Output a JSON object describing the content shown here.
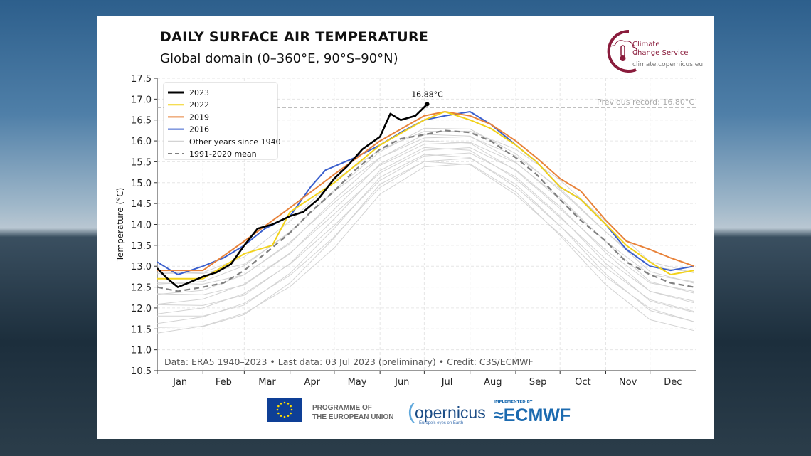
{
  "header": {
    "title": "DAILY SURFACE AIR TEMPERATURE",
    "subtitle": "Global domain (0–360°E, 90°S–90°N)"
  },
  "branding": {
    "c3s_line1": "Climate",
    "c3s_line2": "Change Service",
    "c3s_url": "climate.copernicus.eu",
    "eu_line1": "PROGRAMME OF",
    "eu_line2": "THE EUROPEAN UNION",
    "copernicus": "opernicus",
    "copernicus_tag": "Europe's eyes on Earth",
    "ecmwf_by": "IMPLEMENTED BY",
    "ecmwf": "ECMWF"
  },
  "chart_data": {
    "type": "line",
    "ylabel": "Temperature (°C)",
    "ylim": [
      10.5,
      17.5
    ],
    "yticks": [
      "10.5",
      "11.0",
      "11.5",
      "12.0",
      "12.5",
      "13.0",
      "13.5",
      "14.0",
      "14.5",
      "15.0",
      "15.5",
      "16.0",
      "16.5",
      "17.0",
      "17.5"
    ],
    "xticks": [
      "Jan",
      "Feb",
      "Mar",
      "Apr",
      "May",
      "Jun",
      "Jul",
      "Aug",
      "Sep",
      "Oct",
      "Nov",
      "Dec"
    ],
    "grid": true,
    "legend_position": "top-left",
    "credit": "Data: ERA5 1940–2023 • Last data: 03 Jul 2023 (preliminary) • Credit: C3S/ECMWF",
    "record": {
      "value": 16.8,
      "label": "Previous record: 16.80°C"
    },
    "peak": {
      "date": "07-03",
      "value": 16.88,
      "label": "16.88°C"
    },
    "series": [
      {
        "name": "2023",
        "color": "#000000",
        "x": [
          "01-01",
          "01-08",
          "01-15",
          "01-22",
          "02-01",
          "02-10",
          "02-20",
          "03-01",
          "03-10",
          "03-20",
          "04-01",
          "04-10",
          "04-20",
          "05-01",
          "05-10",
          "05-20",
          "06-01",
          "06-08",
          "06-15",
          "06-25",
          "07-03"
        ],
        "values": [
          12.95,
          12.7,
          12.5,
          12.6,
          12.75,
          12.85,
          13.05,
          13.5,
          13.9,
          14.0,
          14.2,
          14.3,
          14.6,
          15.1,
          15.4,
          15.8,
          16.1,
          16.65,
          16.5,
          16.6,
          16.88
        ]
      },
      {
        "name": "2022",
        "color": "#f2d21a",
        "x": [
          "01-01",
          "02-01",
          "03-01",
          "03-20",
          "04-01",
          "05-01",
          "06-01",
          "07-01",
          "07-15",
          "08-01",
          "08-15",
          "09-01",
          "09-15",
          "10-01",
          "10-15",
          "11-01",
          "11-15",
          "12-01",
          "12-15",
          "12-31"
        ],
        "values": [
          12.7,
          12.7,
          13.3,
          13.5,
          14.3,
          15.0,
          15.9,
          16.5,
          16.7,
          16.5,
          16.3,
          15.9,
          15.5,
          14.9,
          14.6,
          14.0,
          13.5,
          13.1,
          12.8,
          12.9
        ]
      },
      {
        "name": "2019",
        "color": "#e8823a",
        "x": [
          "01-01",
          "02-01",
          "03-01",
          "04-01",
          "05-01",
          "06-01",
          "07-01",
          "07-15",
          "08-01",
          "08-15",
          "09-01",
          "09-15",
          "10-01",
          "10-15",
          "11-01",
          "11-15",
          "12-01",
          "12-15",
          "12-31"
        ],
        "values": [
          12.9,
          12.9,
          13.6,
          14.4,
          15.2,
          16.0,
          16.6,
          16.7,
          16.6,
          16.4,
          16.0,
          15.6,
          15.1,
          14.8,
          14.1,
          13.6,
          13.4,
          13.2,
          13.0
        ]
      },
      {
        "name": "2016",
        "color": "#3a5fcd",
        "x": [
          "01-01",
          "01-15",
          "02-01",
          "02-15",
          "03-01",
          "03-15",
          "04-01",
          "04-15",
          "04-25",
          "05-15",
          "06-01",
          "06-15",
          "07-01",
          "07-15",
          "08-01",
          "08-15",
          "09-01",
          "09-15",
          "10-01",
          "10-15",
          "11-01",
          "11-15",
          "12-01",
          "12-15",
          "12-31"
        ],
        "values": [
          13.1,
          12.8,
          13.0,
          13.2,
          13.5,
          13.9,
          14.2,
          14.9,
          15.3,
          15.6,
          15.9,
          16.2,
          16.5,
          16.6,
          16.7,
          16.4,
          15.9,
          15.5,
          14.9,
          14.6,
          14.0,
          13.4,
          13.0,
          12.9,
          13.0
        ]
      },
      {
        "name": "Other years since 1940",
        "color": "#d3d3d3",
        "x": [
          "01-01",
          "02-01",
          "03-01",
          "04-01",
          "05-01",
          "06-01",
          "07-01",
          "08-01",
          "09-01",
          "10-01",
          "11-01",
          "12-01",
          "12-31"
        ],
        "upper": [
          12.9,
          12.9,
          13.2,
          14.0,
          15.0,
          15.8,
          16.3,
          16.3,
          15.8,
          15.0,
          14.0,
          13.1,
          12.9
        ],
        "lower": [
          11.4,
          11.5,
          11.8,
          12.5,
          13.5,
          14.8,
          15.4,
          15.4,
          14.7,
          13.7,
          12.6,
          11.8,
          11.5
        ]
      },
      {
        "name": "1991-2020 mean",
        "color": "#808080",
        "dashed": true,
        "x": [
          "01-01",
          "01-15",
          "02-01",
          "02-15",
          "03-01",
          "03-15",
          "04-01",
          "04-15",
          "05-01",
          "05-15",
          "06-01",
          "06-15",
          "07-01",
          "07-15",
          "08-01",
          "08-15",
          "09-01",
          "09-15",
          "10-01",
          "10-15",
          "11-01",
          "11-15",
          "12-01",
          "12-15",
          "12-31"
        ],
        "values": [
          12.5,
          12.4,
          12.5,
          12.6,
          12.9,
          13.3,
          13.8,
          14.3,
          14.8,
          15.3,
          15.8,
          16.05,
          16.15,
          16.25,
          16.2,
          16.0,
          15.6,
          15.2,
          14.6,
          14.1,
          13.6,
          13.1,
          12.8,
          12.6,
          12.5
        ]
      }
    ]
  }
}
